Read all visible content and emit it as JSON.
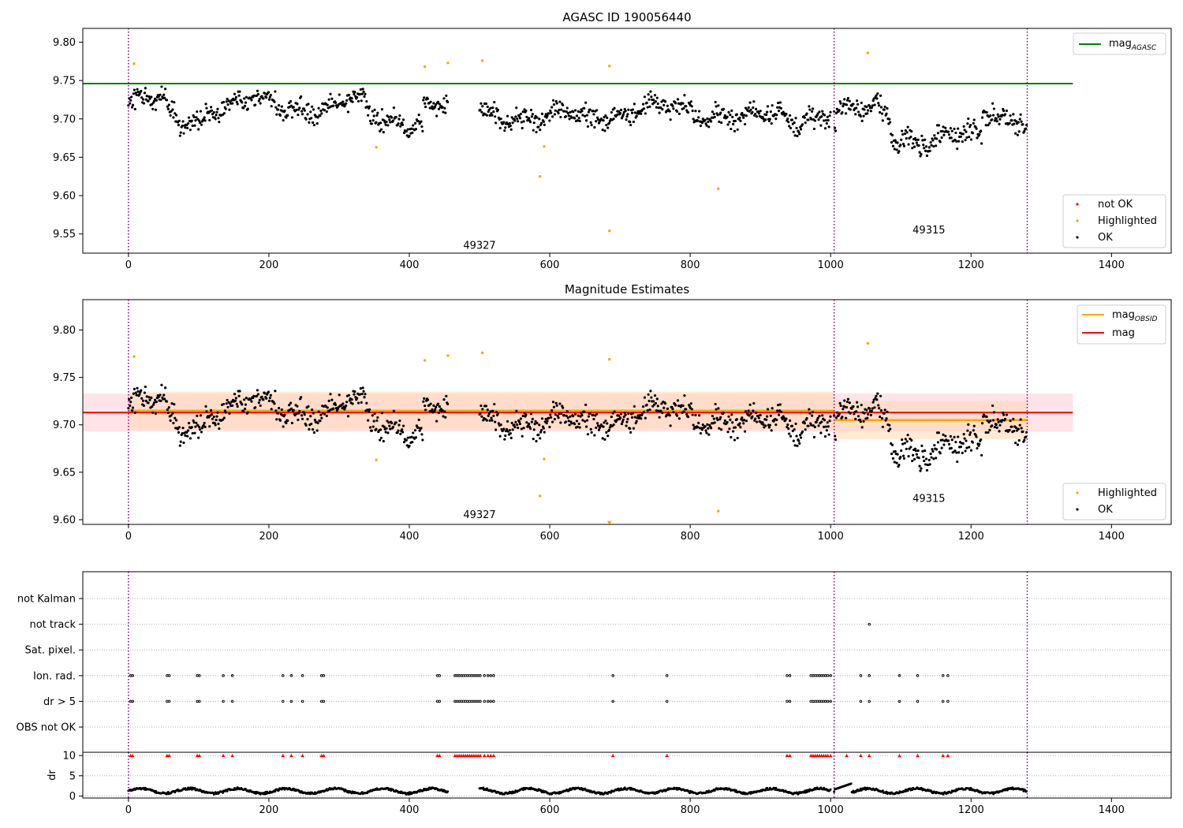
{
  "colors": {
    "ok": "#000000",
    "highlighted": "#ffa500",
    "not_ok": "#ff0000",
    "agasc_line": "#008000",
    "mag_line": "#ff0000",
    "obsid_line": "#ffa500",
    "obs_boundary": "#800080",
    "band_mag": "#ffc0cb",
    "band_obsid": "#ffd8b0"
  },
  "chart_data": [
    {
      "type": "scatter",
      "title": "AGASC ID 190056440",
      "xlim": [
        -65,
        1485
      ],
      "ylim": [
        9.525,
        9.818
      ],
      "x_ticks": [
        0,
        200,
        400,
        600,
        800,
        1000,
        1200,
        1400
      ],
      "x_tick_labels": [
        "0",
        "200",
        "400",
        "600",
        "800",
        "1000",
        "1200",
        "1400"
      ],
      "y_ticks": [
        9.55,
        9.6,
        9.65,
        9.7,
        9.75,
        9.8
      ],
      "y_tick_labels": [
        "9.55",
        "9.60",
        "9.65",
        "9.70",
        "9.75",
        "9.80"
      ],
      "obs_boundaries": [
        0,
        1005,
        1280
      ],
      "reference_lines": [
        {
          "name": "mag_AGASC",
          "y": 9.746,
          "x_range": [
            -65,
            1345
          ]
        }
      ],
      "obsid_labels": [
        {
          "text": "49327",
          "x": 500,
          "y": 9.535
        },
        {
          "text": "49315",
          "x": 1140,
          "y": 9.555
        }
      ],
      "segments": [
        {
          "x0": 0,
          "x1": 455,
          "center": 9.718,
          "spread": 0.016,
          "dip_center": 9.7,
          "dip_ranges": [
            [
              55,
              110
            ],
            [
              340,
              420
            ]
          ]
        },
        {
          "x0": 500,
          "x1": 1000,
          "center": 9.71,
          "spread": 0.016,
          "dip_center": 9.7,
          "dip_ranges": [
            [
              560,
              660
            ],
            [
              860,
              960
            ]
          ]
        },
        {
          "x0": 1005,
          "x1": 1280,
          "center": 9.705,
          "spread": 0.02,
          "dip_center": 9.675,
          "dip_ranges": [
            [
              1085,
              1215
            ]
          ]
        }
      ],
      "highlighted_points": [
        {
          "x": 8,
          "y": 9.772
        },
        {
          "x": 353,
          "y": 9.663
        },
        {
          "x": 422,
          "y": 9.768
        },
        {
          "x": 455,
          "y": 9.773
        },
        {
          "x": 504,
          "y": 9.776
        },
        {
          "x": 586,
          "y": 9.625
        },
        {
          "x": 592,
          "y": 9.664
        },
        {
          "x": 685,
          "y": 9.769
        },
        {
          "x": 685,
          "y": 9.554
        },
        {
          "x": 840,
          "y": 9.609
        },
        {
          "x": 1053,
          "y": 9.786
        }
      ],
      "legends": [
        {
          "placement": "top-right",
          "entries": [
            {
              "label_main": "mag",
              "label_sub": "AGASC",
              "marker": "line",
              "color": "#008000"
            }
          ]
        },
        {
          "placement": "bottom-right",
          "entries": [
            {
              "label": "not OK",
              "marker": "dot",
              "color": "#ff0000"
            },
            {
              "label": "Highlighted",
              "marker": "dot",
              "color": "#ffa500"
            },
            {
              "label": "OK",
              "marker": "dot",
              "color": "#000000"
            }
          ]
        }
      ]
    },
    {
      "type": "scatter",
      "title": "Magnitude Estimates",
      "xlim": [
        -65,
        1485
      ],
      "ylim": [
        9.595,
        9.832
      ],
      "x_ticks": [
        0,
        200,
        400,
        600,
        800,
        1000,
        1200,
        1400
      ],
      "x_tick_labels": [
        "0",
        "200",
        "400",
        "600",
        "800",
        "1000",
        "1200",
        "1400"
      ],
      "y_ticks": [
        9.6,
        9.65,
        9.7,
        9.75,
        9.8
      ],
      "y_tick_labels": [
        "9.60",
        "9.65",
        "9.70",
        "9.75",
        "9.80"
      ],
      "obs_boundaries": [
        0,
        1005,
        1280
      ],
      "mag_line": {
        "y": 9.713,
        "band": [
          9.693,
          9.733
        ],
        "x_range": [
          -65,
          1345
        ]
      },
      "obsid_lines": [
        {
          "x_range": [
            0,
            1005
          ],
          "y": 9.715,
          "band": [
            9.695,
            9.735
          ]
        },
        {
          "x_range": [
            1005,
            1280
          ],
          "y": 9.705,
          "band": [
            9.685,
            9.725
          ]
        }
      ],
      "obsid_labels": [
        {
          "text": "49327",
          "x": 500,
          "y": 9.605
        },
        {
          "text": "49315",
          "x": 1140,
          "y": 9.622
        }
      ],
      "clipped_marker": {
        "x": 685,
        "y": 9.597
      },
      "legends": [
        {
          "placement": "top-right",
          "entries": [
            {
              "label_main": "mag",
              "label_sub": "OBSID",
              "marker": "line",
              "color": "#ffa500"
            },
            {
              "label_main": "mag",
              "label_sub": "",
              "marker": "line",
              "color": "#ff0000"
            }
          ]
        },
        {
          "placement": "bottom-right",
          "entries": [
            {
              "label": "Highlighted",
              "marker": "dot",
              "color": "#ffa500"
            },
            {
              "label": "OK",
              "marker": "dot",
              "color": "#000000"
            }
          ]
        }
      ]
    },
    {
      "type": "scatter",
      "xlim": [
        -65,
        1485
      ],
      "x_ticks": [
        0,
        200,
        400,
        600,
        800,
        1000,
        1200,
        1400
      ],
      "x_tick_labels": [
        "0",
        "200",
        "400",
        "600",
        "800",
        "1000",
        "1200",
        "1400"
      ],
      "obs_boundaries": [
        0,
        1005,
        1280
      ],
      "flag_rows": [
        "not Kalman",
        "not track",
        "Sat. pixel.",
        "Ion. rad.",
        "dr > 5",
        "OBS not OK"
      ],
      "flag_points": {
        "not track": [
          1055
        ],
        "Ion. rad.": [
          3,
          6,
          55,
          58,
          98,
          101,
          135,
          148,
          220,
          232,
          248,
          275,
          278,
          440,
          443,
          465,
          468,
          471,
          474,
          477,
          480,
          483,
          486,
          489,
          492,
          495,
          498,
          501,
          507,
          512,
          516,
          520,
          690,
          767,
          938,
          942,
          972,
          975,
          978,
          981,
          984,
          987,
          990,
          993,
          996,
          1000,
          1043,
          1055,
          1098,
          1124,
          1160,
          1167
        ],
        "dr > 5": [
          3,
          6,
          55,
          58,
          98,
          101,
          135,
          148,
          220,
          232,
          248,
          275,
          278,
          440,
          443,
          465,
          468,
          471,
          474,
          477,
          480,
          483,
          486,
          489,
          492,
          495,
          498,
          501,
          507,
          512,
          516,
          520,
          690,
          767,
          938,
          942,
          972,
          975,
          978,
          981,
          984,
          987,
          990,
          993,
          996,
          1000,
          1043,
          1055,
          1098,
          1124,
          1160,
          1167
        ]
      },
      "dr_panel": {
        "ylabel": "dr",
        "ylim": [
          -0.5,
          10.8
        ],
        "y_ticks": [
          0,
          5,
          10
        ],
        "y_tick_labels": [
          "0",
          "5",
          "10"
        ],
        "clipped_x": [
          3,
          6,
          55,
          58,
          98,
          101,
          135,
          148,
          220,
          232,
          248,
          275,
          278,
          440,
          443,
          465,
          468,
          471,
          474,
          477,
          480,
          483,
          486,
          489,
          492,
          495,
          498,
          501,
          507,
          512,
          516,
          520,
          690,
          767,
          938,
          942,
          972,
          975,
          978,
          981,
          984,
          987,
          990,
          993,
          996,
          1000,
          1023,
          1043,
          1055,
          1098,
          1124,
          1160,
          1167
        ],
        "clip_value": 10
      }
    }
  ]
}
